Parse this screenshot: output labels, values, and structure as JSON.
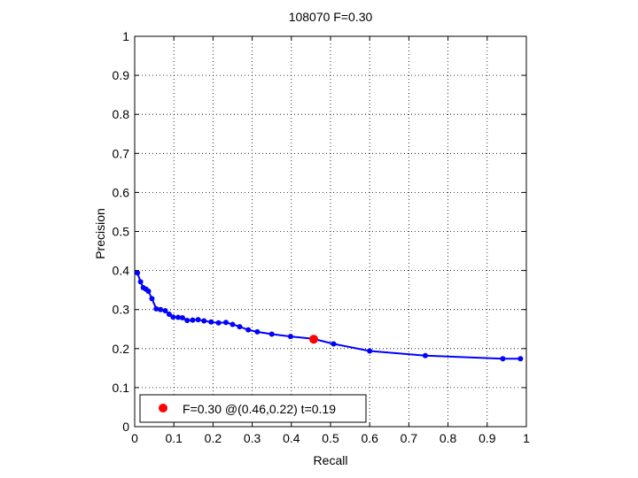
{
  "chart_data": {
    "type": "line",
    "title": "108070 F=0.30",
    "xlabel": "Recall",
    "ylabel": "Precision",
    "xlim": [
      0,
      1
    ],
    "ylim": [
      0,
      1
    ],
    "xticks": [
      "0",
      "0.1",
      "0.2",
      "0.3",
      "0.4",
      "0.5",
      "0.6",
      "0.7",
      "0.8",
      "0.9",
      "1"
    ],
    "yticks": [
      "0",
      "0.1",
      "0.2",
      "0.3",
      "0.4",
      "0.5",
      "0.6",
      "0.7",
      "0.8",
      "0.9",
      "1"
    ],
    "grid": true,
    "line_color": "#0000ff",
    "marker_color": "#0000ff",
    "highlight_color": "#ff0000",
    "series": [
      {
        "x": [
          0.007,
          0.015,
          0.022,
          0.029,
          0.035,
          0.044,
          0.055,
          0.066,
          0.078,
          0.088,
          0.098,
          0.111,
          0.122,
          0.134,
          0.148,
          0.162,
          0.177,
          0.195,
          0.214,
          0.233,
          0.25,
          0.268,
          0.29,
          0.313,
          0.35,
          0.398,
          0.456,
          0.508,
          0.6,
          0.742,
          0.94,
          0.985
        ],
        "y": [
          0.394,
          0.371,
          0.356,
          0.352,
          0.347,
          0.328,
          0.302,
          0.3,
          0.297,
          0.288,
          0.281,
          0.28,
          0.279,
          0.272,
          0.273,
          0.274,
          0.271,
          0.268,
          0.266,
          0.267,
          0.262,
          0.256,
          0.248,
          0.243,
          0.237,
          0.231,
          0.225,
          0.212,
          0.194,
          0.182,
          0.174,
          0.174
        ]
      }
    ],
    "highlight": {
      "x": 0.457,
      "y": 0.224
    },
    "legend": {
      "text": "F=0.30 @(0.46,0.22) t=0.19",
      "placement": "bottom-left"
    }
  }
}
